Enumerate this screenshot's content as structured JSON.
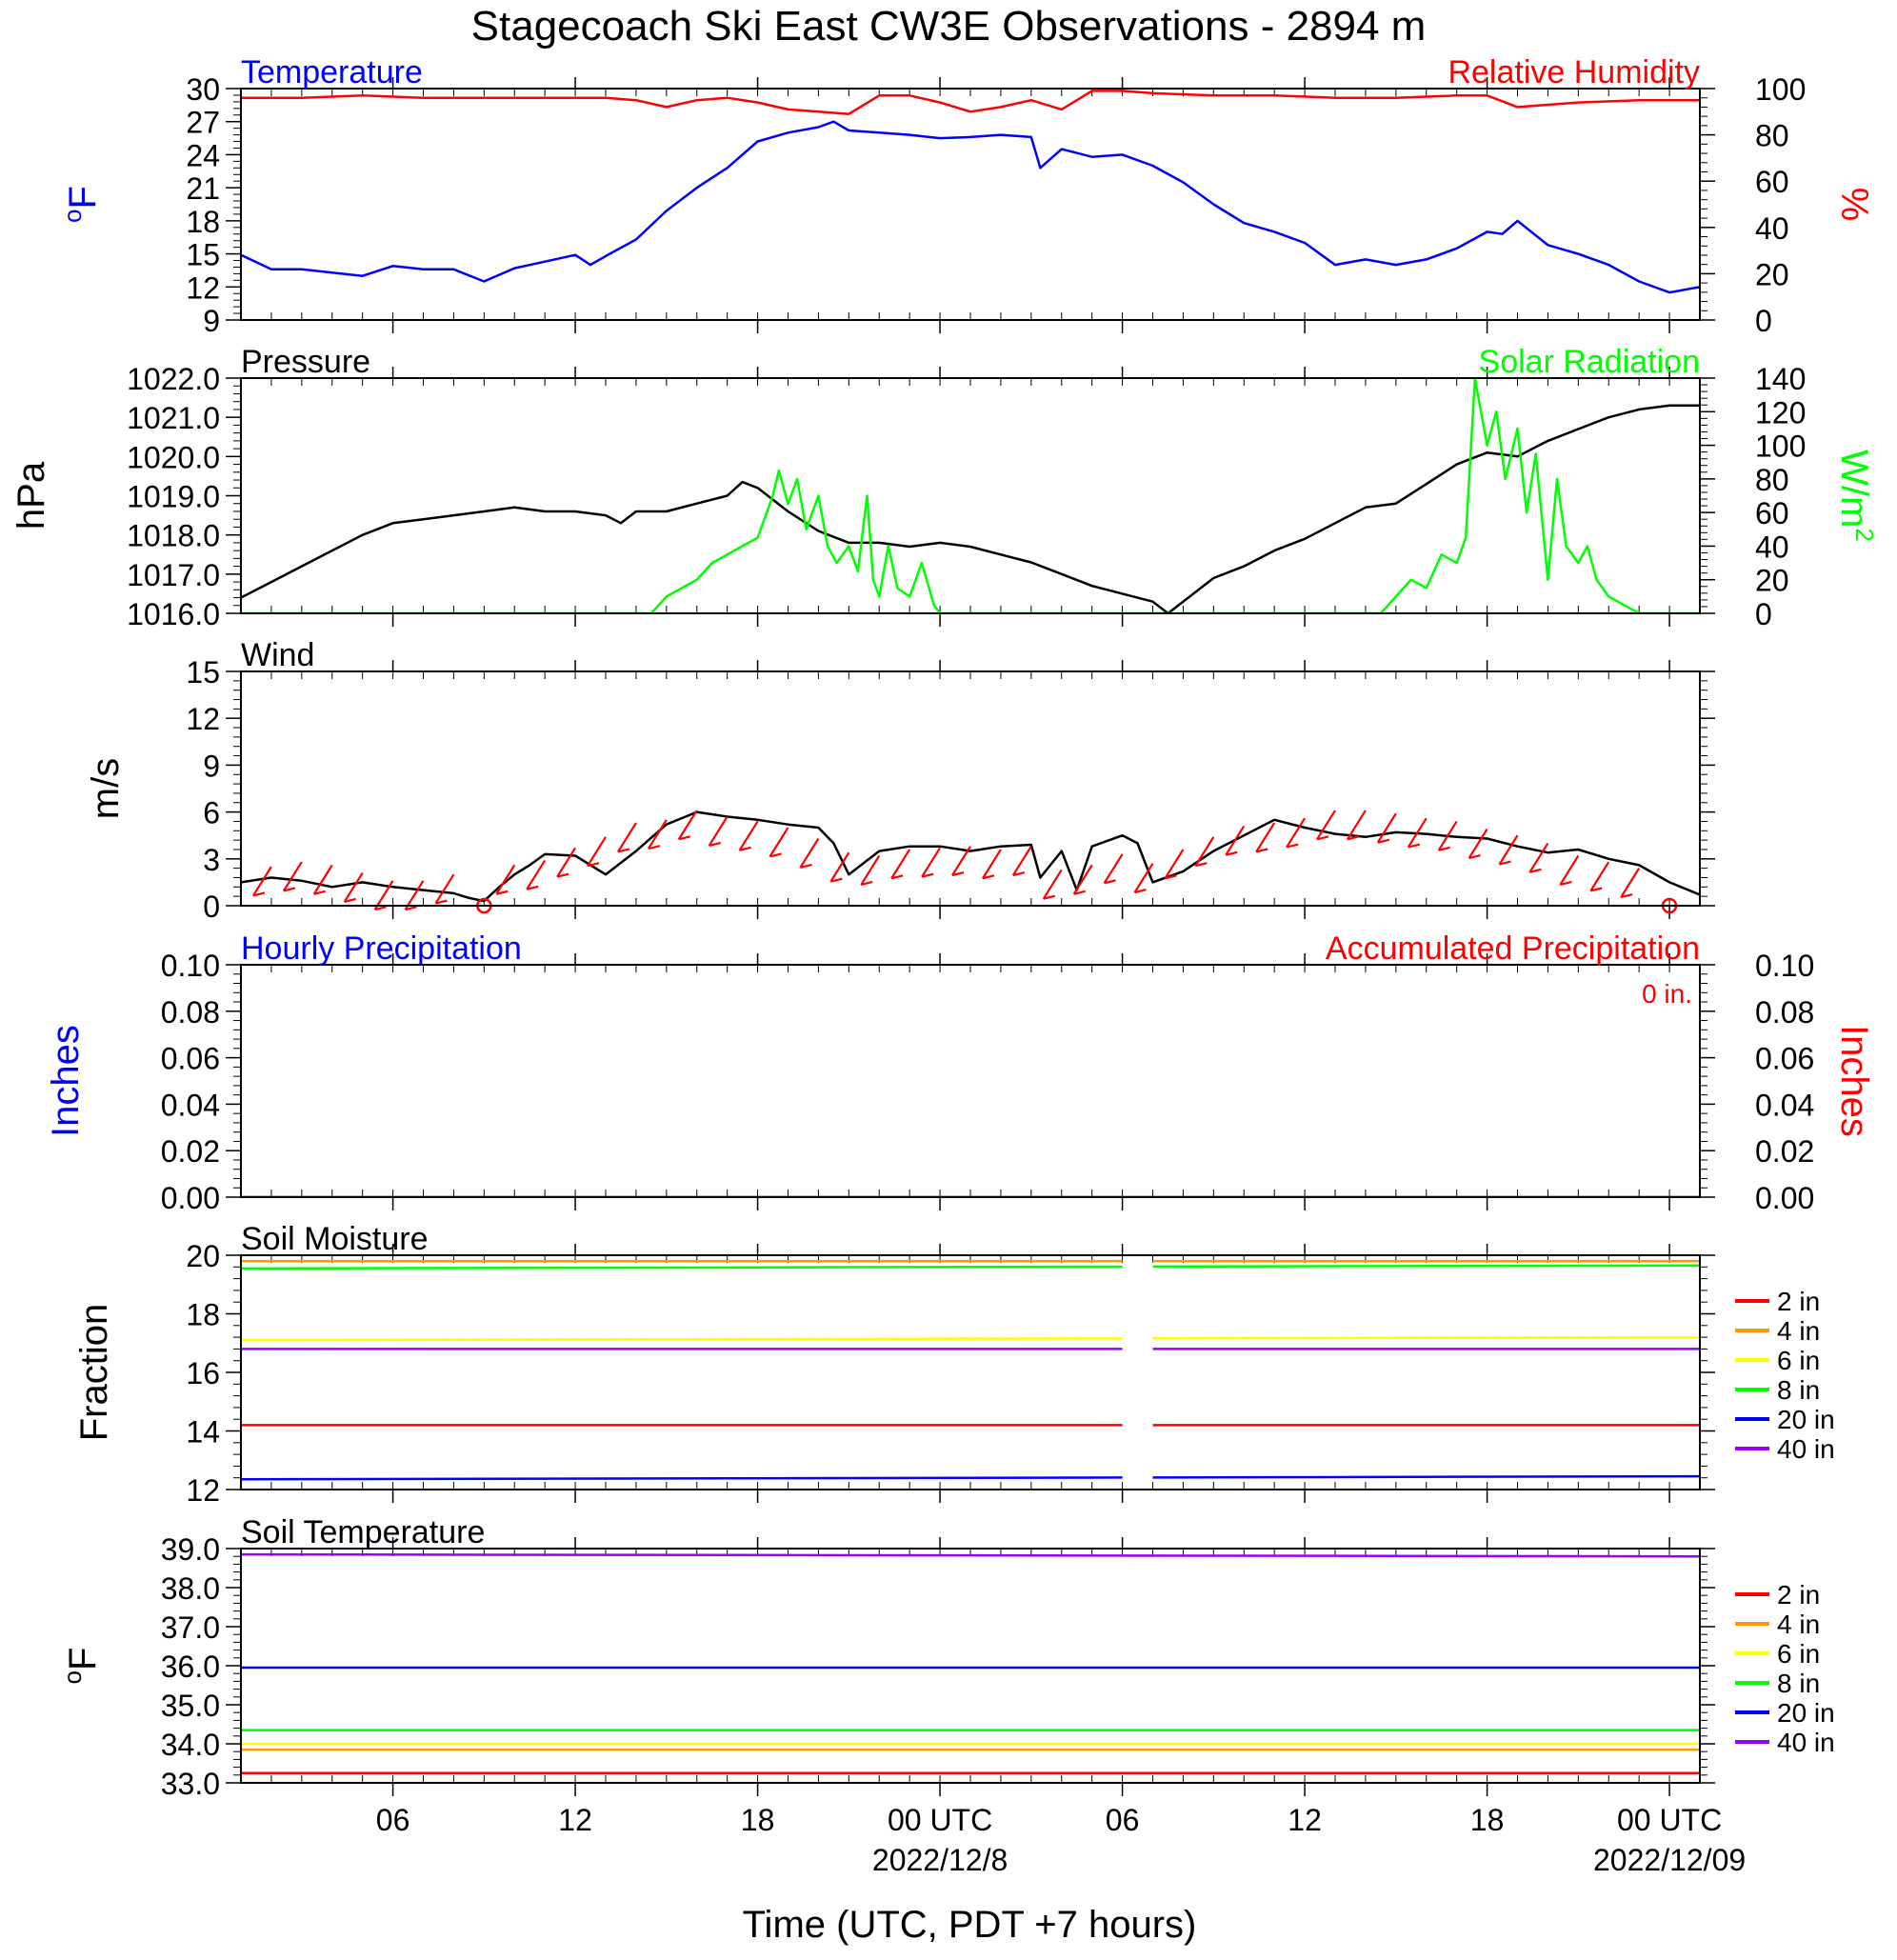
{
  "title": "Stagecoach Ski East CW3E Observations - 2894 m",
  "xlabel": "Time (UTC, PDT +7 hours)",
  "colors": {
    "temperature": "#0000ff",
    "humidity": "#ff0000",
    "pressure": "#000000",
    "solar": "#00ff00",
    "wind": "#000000",
    "barbs": "#ff0000",
    "depths": [
      "#ff0000",
      "#ff9900",
      "#ffff00",
      "#00ff00",
      "#0000ff",
      "#9900ff"
    ]
  },
  "time_axis": {
    "units": "hours since 2022-12-07 01:00 UTC",
    "range": [
      0,
      48
    ],
    "ticks": [
      {
        "h": 5,
        "label": "06"
      },
      {
        "h": 11,
        "label": "12"
      },
      {
        "h": 17,
        "label": "18"
      },
      {
        "h": 23,
        "label": "00 UTC"
      },
      {
        "h": 29,
        "label": "06"
      },
      {
        "h": 35,
        "label": "12"
      },
      {
        "h": 41,
        "label": "18"
      },
      {
        "h": 47,
        "label": "00 UTC"
      }
    ],
    "dates": [
      {
        "h": 23,
        "label": "2022/12/8"
      },
      {
        "h": 47,
        "label": "2022/12/09"
      }
    ]
  },
  "chart_data": [
    {
      "type": "line",
      "left_title": "Temperature",
      "right_title": "Relative Humidity",
      "ylabel_left": "oF",
      "ylabel_right": "%",
      "ylim_left": [
        9,
        30
      ],
      "yticks_left": [
        "9",
        "12",
        "15",
        "18",
        "21",
        "24",
        "27",
        "30"
      ],
      "ylim_right": [
        0,
        100
      ],
      "yticks_right": [
        "0",
        "20",
        "40",
        "60",
        "80",
        "100"
      ],
      "series": [
        {
          "name": "Temperature",
          "axis": "left",
          "color": "#0000ff",
          "x": [
            0,
            1,
            2,
            3,
            4,
            5,
            6,
            7,
            8,
            9,
            10,
            11,
            11.5,
            12,
            13,
            14,
            15,
            16,
            17,
            18,
            19,
            19.5,
            20,
            21,
            22,
            23,
            24,
            25,
            26,
            26.3,
            27,
            28,
            29,
            30,
            31,
            32,
            33,
            34,
            35,
            36,
            37,
            38,
            39,
            40,
            41,
            41.5,
            42,
            43,
            44,
            45,
            46,
            47,
            48
          ],
          "y": [
            14.9,
            13.6,
            13.6,
            13.3,
            13.0,
            13.9,
            13.6,
            13.6,
            12.5,
            13.7,
            14.3,
            14.9,
            14.0,
            14.8,
            16.3,
            18.9,
            21.0,
            22.8,
            25.2,
            26.0,
            26.5,
            27.0,
            26.2,
            26.0,
            25.8,
            25.5,
            25.6,
            25.8,
            25.6,
            22.8,
            24.5,
            23.8,
            24.0,
            23.0,
            21.5,
            19.5,
            17.8,
            17.0,
            16.0,
            14.0,
            14.5,
            14.0,
            14.5,
            15.5,
            17.0,
            16.8,
            18.0,
            15.8,
            15.0,
            14.0,
            12.5,
            11.5,
            12.0
          ]
        },
        {
          "name": "Relative Humidity",
          "axis": "right",
          "color": "#ff0000",
          "x": [
            0,
            2,
            4,
            6,
            8,
            10,
            12,
            13,
            14,
            15,
            16,
            17,
            18,
            19,
            20,
            21,
            22,
            23,
            24,
            25,
            26,
            27,
            28,
            29,
            30,
            32,
            34,
            36,
            38,
            40,
            41,
            42,
            43,
            44,
            46,
            48
          ],
          "y": [
            96,
            96,
            97,
            96,
            96,
            96,
            96,
            95,
            92,
            95,
            96,
            94,
            91,
            90,
            89,
            97,
            97,
            94,
            90,
            92,
            95,
            91,
            99,
            99,
            98,
            97,
            97,
            96,
            96,
            97,
            97,
            92,
            93,
            94,
            95,
            95
          ]
        }
      ]
    },
    {
      "type": "line",
      "left_title": "Pressure",
      "right_title": "Solar Radiation",
      "ylabel_left": "hPa",
      "ylabel_right": "W/m2",
      "ylim_left": [
        1016.0,
        1022.0
      ],
      "yticks_left": [
        "1016.0",
        "1017.0",
        "1018.0",
        "1019.0",
        "1020.0",
        "1021.0",
        "1022.0"
      ],
      "ylim_right": [
        0,
        140
      ],
      "yticks_right": [
        "0",
        "20",
        "40",
        "60",
        "80",
        "100",
        "120",
        "140"
      ],
      "series": [
        {
          "name": "Pressure",
          "axis": "left",
          "color": "#000000",
          "x": [
            0,
            1,
            2,
            3,
            4,
            5,
            6,
            7,
            8,
            9,
            10,
            11,
            12,
            12.5,
            13,
            14,
            15,
            16,
            16.5,
            17,
            18,
            19,
            20,
            21,
            22,
            23,
            24,
            25,
            26,
            27,
            28,
            29,
            30,
            30.5,
            31,
            32,
            33,
            34,
            35,
            36,
            37,
            38,
            39,
            40,
            41,
            42,
            43,
            44,
            45,
            46,
            47,
            48
          ],
          "y": [
            1016.4,
            1016.8,
            1017.2,
            1017.6,
            1018.0,
            1018.3,
            1018.4,
            1018.5,
            1018.6,
            1018.7,
            1018.6,
            1018.6,
            1018.5,
            1018.3,
            1018.6,
            1018.6,
            1018.8,
            1019.0,
            1019.35,
            1019.2,
            1018.6,
            1018.1,
            1017.8,
            1017.8,
            1017.7,
            1017.8,
            1017.7,
            1017.5,
            1017.3,
            1017.0,
            1016.7,
            1016.5,
            1016.3,
            1016.0,
            1016.3,
            1016.9,
            1017.2,
            1017.6,
            1017.9,
            1018.3,
            1018.7,
            1018.8,
            1019.3,
            1019.8,
            1020.1,
            1020.0,
            1020.4,
            1020.7,
            1021.0,
            1021.2,
            1021.3,
            1021.3
          ]
        },
        {
          "name": "Solar Radiation",
          "axis": "right",
          "color": "#00ff00",
          "x": [
            0,
            13.5,
            14,
            15,
            15.5,
            16,
            16.5,
            17,
            17.5,
            17.7,
            18,
            18.3,
            18.6,
            19,
            19.3,
            19.6,
            20,
            20.3,
            20.6,
            20.8,
            21,
            21.3,
            21.6,
            22,
            22.4,
            22.8,
            23,
            23.5,
            24,
            37.5,
            38,
            38.5,
            39,
            39.5,
            40,
            40.3,
            40.6,
            41,
            41.3,
            41.6,
            42,
            42.3,
            42.6,
            43,
            43.3,
            43.6,
            44,
            44.3,
            44.6,
            45,
            45.5,
            46,
            48
          ],
          "y": [
            0,
            0,
            10,
            20,
            30,
            35,
            40,
            45,
            70,
            85,
            65,
            80,
            50,
            70,
            40,
            30,
            40,
            25,
            70,
            20,
            10,
            40,
            15,
            10,
            30,
            5,
            0,
            0,
            0,
            0,
            10,
            20,
            15,
            35,
            30,
            45,
            140,
            100,
            120,
            80,
            110,
            60,
            95,
            20,
            80,
            40,
            30,
            40,
            20,
            10,
            5,
            0,
            0
          ]
        }
      ]
    },
    {
      "type": "line",
      "left_title": "Wind",
      "ylabel_left": "m/s",
      "ylim_left": [
        0,
        15
      ],
      "yticks_left": [
        "0",
        "3",
        "6",
        "9",
        "12",
        "15"
      ],
      "series": [
        {
          "name": "Wind",
          "axis": "left",
          "color": "#000000",
          "x": [
            0,
            1,
            2,
            3,
            4,
            5,
            6,
            7,
            7.5,
            8,
            8.5,
            9,
            9.5,
            10,
            11,
            12,
            13,
            14,
            15,
            16,
            17,
            18,
            19,
            19.5,
            20,
            21,
            22,
            23,
            24,
            25,
            26,
            26.3,
            27,
            27.5,
            28,
            29,
            29.5,
            30,
            31,
            32,
            33,
            34,
            35,
            36,
            37,
            38,
            39,
            40,
            41,
            42,
            43,
            44,
            45,
            46,
            47,
            48
          ],
          "y": [
            1.5,
            1.8,
            1.6,
            1.2,
            1.5,
            1.2,
            1.0,
            0.8,
            0.5,
            0.3,
            1.2,
            2.0,
            2.6,
            3.3,
            3.2,
            2.0,
            3.5,
            5.2,
            6.0,
            5.7,
            5.5,
            5.2,
            5.0,
            4.0,
            2.0,
            3.5,
            3.8,
            3.8,
            3.5,
            3.8,
            3.9,
            1.8,
            3.5,
            1.0,
            3.8,
            4.5,
            4.0,
            1.5,
            2.2,
            3.5,
            4.5,
            5.5,
            5.0,
            4.6,
            4.4,
            4.7,
            4.6,
            4.4,
            4.3,
            3.8,
            3.4,
            3.6,
            3.0,
            2.6,
            1.5,
            0.7
          ]
        }
      ],
      "barbs": [
        {
          "h": 1,
          "spd": 2.5
        },
        {
          "h": 2,
          "spd": 2.8
        },
        {
          "h": 3,
          "spd": 2.6
        },
        {
          "h": 4,
          "spd": 2.1
        },
        {
          "h": 5,
          "spd": 1.6
        },
        {
          "h": 6,
          "spd": 1.6
        },
        {
          "h": 7,
          "spd": 2.0
        },
        {
          "h": 8,
          "spd": 0
        },
        {
          "h": 9,
          "spd": 2.6
        },
        {
          "h": 10,
          "spd": 2.9
        },
        {
          "h": 11,
          "spd": 3.7
        },
        {
          "h": 12,
          "spd": 4.4
        },
        {
          "h": 13,
          "spd": 5.3
        },
        {
          "h": 14,
          "spd": 5.5
        },
        {
          "h": 15,
          "spd": 6.1
        },
        {
          "h": 16,
          "spd": 5.7
        },
        {
          "h": 17,
          "spd": 5.4
        },
        {
          "h": 18,
          "spd": 5.0
        },
        {
          "h": 19,
          "spd": 4.3
        },
        {
          "h": 20,
          "spd": 3.4
        },
        {
          "h": 21,
          "spd": 3.2
        },
        {
          "h": 22,
          "spd": 3.6
        },
        {
          "h": 23,
          "spd": 3.7
        },
        {
          "h": 24,
          "spd": 3.8
        },
        {
          "h": 25,
          "spd": 3.6
        },
        {
          "h": 26,
          "spd": 3.8
        },
        {
          "h": 27,
          "spd": 2.3
        },
        {
          "h": 28,
          "spd": 2.6
        },
        {
          "h": 29,
          "spd": 3.3
        },
        {
          "h": 30,
          "spd": 2.7
        },
        {
          "h": 31,
          "spd": 3.6
        },
        {
          "h": 32,
          "spd": 4.4
        },
        {
          "h": 33,
          "spd": 5.1
        },
        {
          "h": 34,
          "spd": 5.3
        },
        {
          "h": 35,
          "spd": 5.6
        },
        {
          "h": 36,
          "spd": 6.1
        },
        {
          "h": 37,
          "spd": 6.1
        },
        {
          "h": 38,
          "spd": 5.9
        },
        {
          "h": 39,
          "spd": 5.6
        },
        {
          "h": 40,
          "spd": 5.4
        },
        {
          "h": 41,
          "spd": 4.9
        },
        {
          "h": 42,
          "spd": 4.5
        },
        {
          "h": 43,
          "spd": 4.0
        },
        {
          "h": 44,
          "spd": 3.2
        },
        {
          "h": 45,
          "spd": 2.8
        },
        {
          "h": 46,
          "spd": 2.4
        },
        {
          "h": 47,
          "spd": 0
        }
      ]
    },
    {
      "type": "line",
      "left_title": "Hourly Precipitation",
      "right_title": "Accumulated Precipitation",
      "total_label": "0 in.",
      "ylabel_left": "Inches",
      "ylabel_right": "Inches",
      "ylim_left": [
        0,
        0.1
      ],
      "yticks_left": [
        "0.00",
        "0.02",
        "0.04",
        "0.06",
        "0.08",
        "0.10"
      ],
      "ylim_right": [
        0,
        0.1
      ],
      "yticks_right": [
        "0.00",
        "0.02",
        "0.04",
        "0.06",
        "0.08",
        "0.10"
      ],
      "series": [
        {
          "name": "Hourly Precipitation",
          "color": "#0000ff",
          "x": [
            0,
            48
          ],
          "y": [
            0,
            0
          ]
        },
        {
          "name": "Accumulated Precipitation",
          "color": "#ff0000",
          "x": [
            0,
            48
          ],
          "y": [
            0,
            0
          ]
        }
      ]
    },
    {
      "type": "line",
      "left_title": "Soil Moisture",
      "ylabel_left": "Fraction",
      "ylim_left": [
        12,
        20
      ],
      "yticks_left": [
        "12",
        "14",
        "16",
        "18",
        "20"
      ],
      "gap_hours": [
        29,
        30
      ],
      "legend": [
        "2 in",
        "4 in",
        "6 in",
        "8 in",
        "20 in",
        "40 in"
      ],
      "series": [
        {
          "name": "2 in",
          "color": "#ff0000",
          "x": [
            0,
            48
          ],
          "y": [
            14.2,
            14.2
          ]
        },
        {
          "name": "4 in",
          "color": "#ff9900",
          "x": [
            0,
            48
          ],
          "y": [
            19.8,
            19.8
          ]
        },
        {
          "name": "6 in",
          "color": "#ffff00",
          "x": [
            0,
            48
          ],
          "y": [
            17.1,
            17.2
          ]
        },
        {
          "name": "8 in",
          "color": "#00ff00",
          "x": [
            0,
            48
          ],
          "y": [
            19.55,
            19.65
          ]
        },
        {
          "name": "20 in",
          "color": "#0000ff",
          "x": [
            0,
            48
          ],
          "y": [
            12.35,
            12.45
          ]
        },
        {
          "name": "40 in",
          "color": "#9900ff",
          "x": [
            0,
            48
          ],
          "y": [
            16.8,
            16.8
          ]
        }
      ]
    },
    {
      "type": "line",
      "left_title": "Soil Temperature",
      "ylabel_left": "oF",
      "ylim_left": [
        33,
        39
      ],
      "yticks_left": [
        "33.0",
        "34.0",
        "35.0",
        "36.0",
        "37.0",
        "38.0",
        "39.0"
      ],
      "legend": [
        "2 in",
        "4 in",
        "6 in",
        "8 in",
        "20 in",
        "40 in"
      ],
      "series": [
        {
          "name": "2 in",
          "color": "#ff0000",
          "x": [
            0,
            48
          ],
          "y": [
            33.25,
            33.25
          ]
        },
        {
          "name": "4 in",
          "color": "#ff9900",
          "x": [
            0,
            48
          ],
          "y": [
            33.85,
            33.85
          ]
        },
        {
          "name": "6 in",
          "color": "#ffff00",
          "x": [
            0,
            48
          ],
          "y": [
            34.0,
            34.0
          ]
        },
        {
          "name": "8 in",
          "color": "#00ff00",
          "x": [
            0,
            48
          ],
          "y": [
            34.35,
            34.35
          ]
        },
        {
          "name": "20 in",
          "color": "#0000ff",
          "x": [
            0,
            48
          ],
          "y": [
            35.95,
            35.95
          ]
        },
        {
          "name": "40 in",
          "color": "#9900ff",
          "x": [
            0,
            48
          ],
          "y": [
            38.85,
            38.8
          ]
        }
      ]
    }
  ]
}
